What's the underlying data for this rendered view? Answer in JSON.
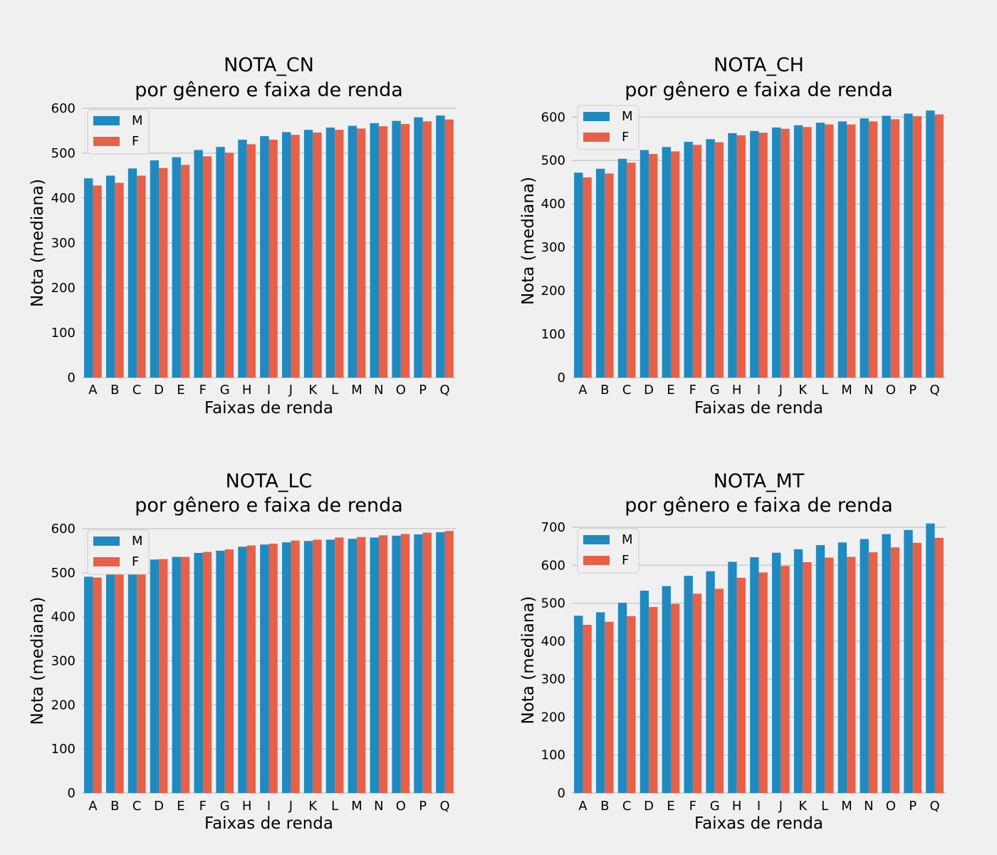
{
  "colors": {
    "M": "#1f8ac0",
    "F": "#e6604a",
    "background": "#f0f0f0",
    "grid": "#cbcbcb"
  },
  "chart_data": [
    {
      "type": "bar",
      "title": "NOTA_CN",
      "subtitle": "por gênero e faixa de renda",
      "xlabel": "Faixas de renda",
      "ylabel": "Nota (mediana)",
      "ylim": [
        0,
        600
      ],
      "yticks": [
        0,
        100,
        200,
        300,
        400,
        500,
        600
      ],
      "grid": true,
      "legend_position": "top-left",
      "categories": [
        "A",
        "B",
        "C",
        "D",
        "E",
        "F",
        "G",
        "H",
        "I",
        "J",
        "K",
        "L",
        "M",
        "N",
        "O",
        "P",
        "Q"
      ],
      "series": [
        {
          "name": "M",
          "values": [
            444,
            450,
            466,
            484,
            491,
            507,
            514,
            530,
            538,
            547,
            552,
            557,
            561,
            567,
            572,
            580,
            584
          ]
        },
        {
          "name": "F",
          "values": [
            428,
            434,
            450,
            467,
            474,
            493,
            501,
            520,
            530,
            541,
            546,
            552,
            555,
            560,
            565,
            571,
            575
          ]
        }
      ]
    },
    {
      "type": "bar",
      "title": "NOTA_CH",
      "subtitle": "por gênero e faixa de renda",
      "xlabel": "Faixas de renda",
      "ylabel": "Nota (mediana)",
      "ylim": [
        0,
        630
      ],
      "yticks": [
        0,
        100,
        200,
        300,
        400,
        500,
        600
      ],
      "grid": true,
      "legend_position": "top-left",
      "categories": [
        "A",
        "B",
        "C",
        "D",
        "E",
        "F",
        "G",
        "H",
        "I",
        "J",
        "K",
        "L",
        "M",
        "N",
        "O",
        "P",
        "Q"
      ],
      "series": [
        {
          "name": "M",
          "values": [
            472,
            481,
            504,
            524,
            531,
            543,
            549,
            563,
            568,
            576,
            581,
            587,
            590,
            597,
            603,
            608,
            615
          ]
        },
        {
          "name": "F",
          "values": [
            461,
            470,
            495,
            515,
            521,
            536,
            542,
            558,
            564,
            573,
            577,
            583,
            583,
            590,
            595,
            602,
            606
          ]
        }
      ]
    },
    {
      "type": "bar",
      "title": "NOTA_LC",
      "subtitle": "por gênero e faixa de renda",
      "xlabel": "Faixas de renda",
      "ylabel": "Nota (mediana)",
      "ylim": [
        0,
        600
      ],
      "yticks": [
        0,
        100,
        200,
        300,
        400,
        500,
        600
      ],
      "grid": true,
      "legend_position": "top-left",
      "categories": [
        "A",
        "B",
        "C",
        "D",
        "E",
        "F",
        "G",
        "H",
        "I",
        "J",
        "K",
        "L",
        "M",
        "N",
        "O",
        "P",
        "Q"
      ],
      "series": [
        {
          "name": "M",
          "values": [
            491,
            500,
            517,
            530,
            536,
            545,
            550,
            559,
            564,
            569,
            572,
            575,
            577,
            580,
            584,
            587,
            592
          ]
        },
        {
          "name": "F",
          "values": [
            489,
            500,
            517,
            531,
            536,
            547,
            553,
            562,
            566,
            573,
            575,
            580,
            581,
            585,
            588,
            591,
            595
          ]
        }
      ]
    },
    {
      "type": "bar",
      "title": "NOTA_MT",
      "subtitle": "por gênero e faixa de renda",
      "xlabel": "Faixas de renda",
      "ylabel": "Nota (mediana)",
      "ylim": [
        0,
        700
      ],
      "yticks": [
        0,
        100,
        200,
        300,
        400,
        500,
        600,
        700
      ],
      "grid": true,
      "legend_position": "top-left",
      "categories": [
        "A",
        "B",
        "C",
        "D",
        "E",
        "F",
        "G",
        "H",
        "I",
        "J",
        "K",
        "L",
        "M",
        "N",
        "O",
        "P",
        "Q"
      ],
      "series": [
        {
          "name": "M",
          "values": [
            467,
            476,
            501,
            533,
            545,
            572,
            584,
            609,
            621,
            633,
            642,
            653,
            660,
            669,
            682,
            693,
            710
          ]
        },
        {
          "name": "F",
          "values": [
            443,
            451,
            466,
            490,
            498,
            525,
            538,
            567,
            581,
            598,
            608,
            620,
            622,
            634,
            647,
            659,
            672
          ]
        }
      ]
    }
  ]
}
